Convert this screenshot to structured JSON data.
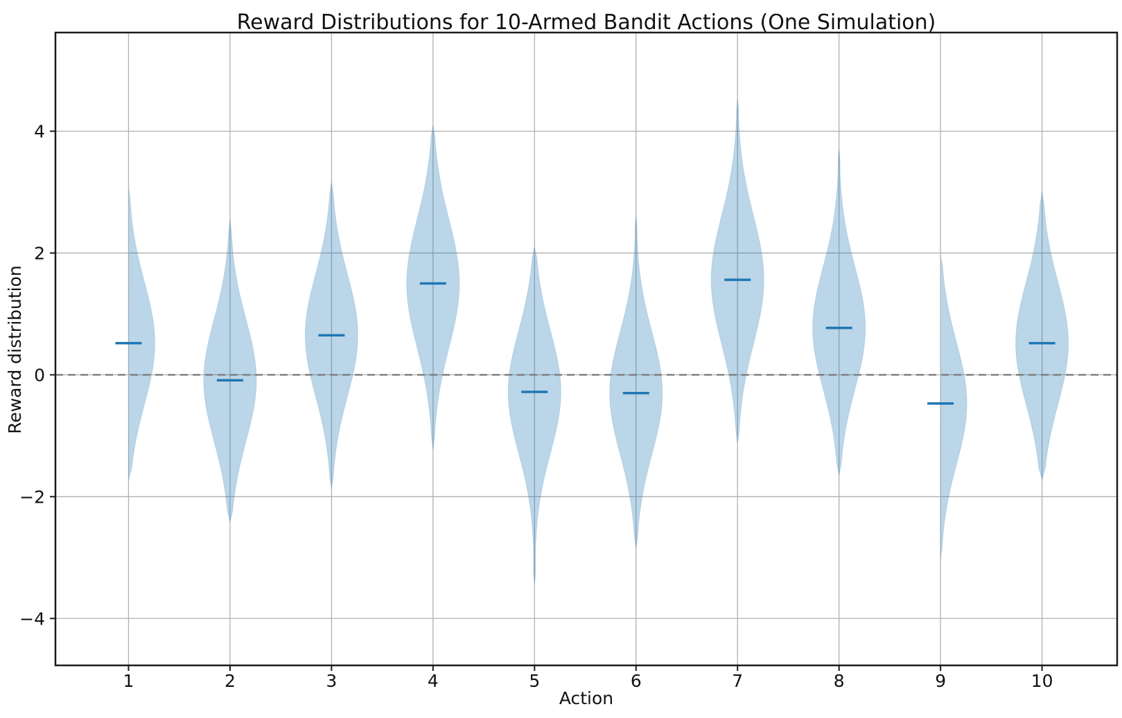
{
  "chart_data": {
    "type": "violin",
    "title": "Reward Distributions for 10-Armed Bandit Actions (One Simulation)",
    "xlabel": "Action",
    "ylabel": "Reward distribution",
    "categories": [
      1,
      2,
      3,
      4,
      5,
      6,
      7,
      8,
      9,
      10
    ],
    "x_tick_labels": [
      "1",
      "2",
      "3",
      "4",
      "5",
      "6",
      "7",
      "8",
      "9",
      "10"
    ],
    "y_tick_values": [
      -4,
      -2,
      0,
      2,
      4
    ],
    "y_tick_labels": [
      "−4",
      "−2",
      "0",
      "2",
      "4"
    ],
    "xlim": [
      0.28,
      10.74
    ],
    "ylim": [
      -4.77,
      5.62
    ],
    "grid": true,
    "legend": "none",
    "zero_line": {
      "value": 0,
      "style": "dashed",
      "color": "#808080"
    },
    "violin_width_units": 0.52,
    "series": [
      {
        "action": 1,
        "mean": 0.52,
        "min": -1.72,
        "max": 3.1,
        "sd": 1.0
      },
      {
        "action": 2,
        "mean": -0.09,
        "min": -2.42,
        "max": 2.55,
        "sd": 1.0
      },
      {
        "action": 3,
        "mean": 0.65,
        "min": -1.87,
        "max": 3.16,
        "sd": 1.0
      },
      {
        "action": 4,
        "mean": 1.5,
        "min": -1.23,
        "max": 4.1,
        "sd": 1.05
      },
      {
        "action": 5,
        "mean": -0.28,
        "min": -3.43,
        "max": 2.1,
        "sd": 1.0
      },
      {
        "action": 6,
        "mean": -0.3,
        "min": -2.85,
        "max": 2.6,
        "sd": 1.0
      },
      {
        "action": 7,
        "mean": 1.56,
        "min": -1.12,
        "max": 4.52,
        "sd": 1.05
      },
      {
        "action": 8,
        "mean": 0.77,
        "min": -1.65,
        "max": 3.7,
        "sd": 1.0
      },
      {
        "action": 9,
        "mean": -0.47,
        "min": -3.02,
        "max": 1.97,
        "sd": 1.0
      },
      {
        "action": 10,
        "mean": 0.52,
        "min": -1.72,
        "max": 3.0,
        "sd": 1.0
      }
    ],
    "colors": {
      "violin_fill": "rgba(31,119,180,0.30)",
      "violin_edge": "rgba(31,119,180,0.18)",
      "mean_line": "#1f77b4",
      "grid": "#b0b0b0",
      "spine": "#1a1a1a",
      "zero_line": "#808080"
    }
  }
}
